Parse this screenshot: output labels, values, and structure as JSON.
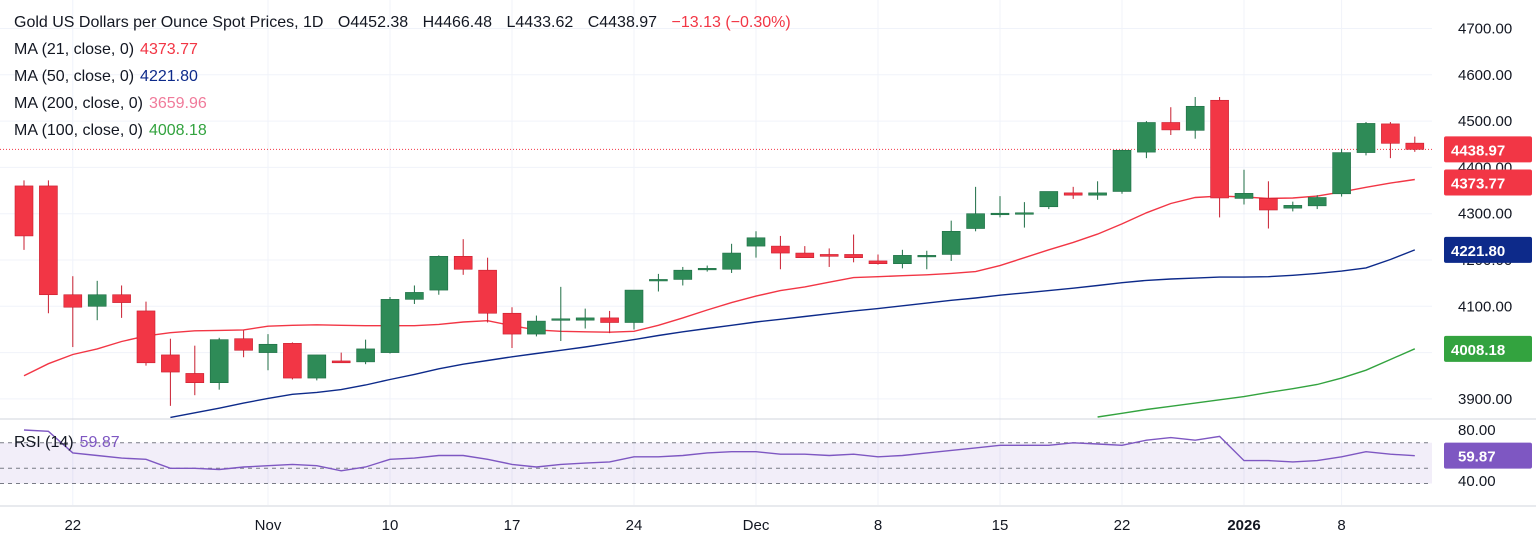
{
  "header": {
    "symbol": "Gold US Dollars per Ounce Spot Prices, 1D",
    "open": "O4452.38",
    "high": "H4466.48",
    "low": "L4433.62",
    "close": "C4438.97",
    "change": "−13.13 (−0.30%)"
  },
  "legend": [
    {
      "label": "MA (21, close, 0)",
      "value": "4373.77",
      "color": "#f23645"
    },
    {
      "label": "MA (50, close, 0)",
      "value": "4221.80",
      "color": "#0d2a8a"
    },
    {
      "label": "MA (200, close, 0)",
      "value": "3659.96",
      "color": "#f07a9a"
    },
    {
      "label": "MA (100, close, 0)",
      "value": "4008.18",
      "color": "#33a33f"
    }
  ],
  "rsi_legend": {
    "label": "RSI (14)",
    "value": "59.87",
    "color": "#7e57c2"
  },
  "price_tags": [
    {
      "value": "4438.97",
      "bg": "#f23645",
      "fg": "#ffffff",
      "y": 4438.97
    },
    {
      "value": "4373.77",
      "bg": "#f23645",
      "fg": "#ffffff",
      "y": 4373.77
    },
    {
      "value": "4221.80",
      "bg": "#0d2a8a",
      "fg": "#ffffff",
      "y": 4221.8
    },
    {
      "value": "4008.18",
      "bg": "#33a33f",
      "fg": "#ffffff",
      "y": 4008.18
    }
  ],
  "rsi_tag": {
    "value": "59.87",
    "bg": "#7e57c2",
    "fg": "#ffffff"
  },
  "chart_data": {
    "type": "candlestick",
    "title": "Gold US Dollars per Ounce Spot Prices, 1D",
    "y_ticks": [
      "3900.00",
      "4000.00",
      "4100.00",
      "4200.00",
      "4300.00",
      "4400.00",
      "4500.00",
      "4600.00",
      "4700.00"
    ],
    "x_ticks": [
      {
        "label": "22",
        "i": 2
      },
      {
        "label": "Nov",
        "i": 10
      },
      {
        "label": "10",
        "i": 15
      },
      {
        "label": "17",
        "i": 20
      },
      {
        "label": "24",
        "i": 25
      },
      {
        "label": "Dec",
        "i": 30
      },
      {
        "label": "8",
        "i": 35
      },
      {
        "label": "15",
        "i": 40
      },
      {
        "label": "22",
        "i": 45
      },
      {
        "label": "2026",
        "i": 50,
        "bold": true
      },
      {
        "label": "8",
        "i": 54
      }
    ],
    "ylim": [
      3830,
      4760
    ],
    "candles": [
      [
        4360,
        4372,
        4222,
        4252
      ],
      [
        4360,
        4372,
        4085,
        4125
      ],
      [
        4125,
        4165,
        4012,
        4098
      ],
      [
        4100,
        4155,
        4070,
        4125
      ],
      [
        4125,
        4145,
        4075,
        4108
      ],
      [
        4090,
        4110,
        3972,
        3978
      ],
      [
        3995,
        4030,
        3885,
        3958
      ],
      [
        3955,
        4015,
        3908,
        3935
      ],
      [
        3935,
        4032,
        3920,
        4028
      ],
      [
        4030,
        4048,
        3990,
        4005
      ],
      [
        4000,
        4040,
        3962,
        4018
      ],
      [
        4020,
        4022,
        3942,
        3945
      ],
      [
        3945,
        3995,
        3940,
        3995
      ],
      [
        3982,
        4000,
        3978,
        3978
      ],
      [
        3980,
        4028,
        3975,
        4008
      ],
      [
        4000,
        4120,
        3998,
        4115
      ],
      [
        4115,
        4145,
        4105,
        4130
      ],
      [
        4135,
        4210,
        4125,
        4208
      ],
      [
        4208,
        4245,
        4168,
        4180
      ],
      [
        4178,
        4205,
        4065,
        4085
      ],
      [
        4085,
        4098,
        4010,
        4040
      ],
      [
        4040,
        4080,
        4035,
        4068
      ],
      [
        4070,
        4142,
        4025,
        4073
      ],
      [
        4070,
        4095,
        4052,
        4075
      ],
      [
        4075,
        4090,
        4042,
        4065
      ],
      [
        4065,
        4130,
        4050,
        4135
      ],
      [
        4155,
        4170,
        4132,
        4158
      ],
      [
        4158,
        4185,
        4145,
        4178
      ],
      [
        4180,
        4188,
        4175,
        4182
      ],
      [
        4180,
        4235,
        4172,
        4215
      ],
      [
        4230,
        4262,
        4205,
        4248
      ],
      [
        4230,
        4252,
        4180,
        4215
      ],
      [
        4215,
        4230,
        4205,
        4205
      ],
      [
        4212,
        4225,
        4185,
        4208
      ],
      [
        4212,
        4255,
        4195,
        4205
      ],
      [
        4198,
        4212,
        4190,
        4192
      ],
      [
        4192,
        4222,
        4182,
        4210
      ],
      [
        4208,
        4220,
        4180,
        4210
      ],
      [
        4212,
        4285,
        4198,
        4262
      ],
      [
        4268,
        4358,
        4262,
        4300
      ],
      [
        4300,
        4338,
        4292,
        4301
      ],
      [
        4300,
        4325,
        4270,
        4302
      ],
      [
        4315,
        4345,
        4310,
        4348
      ],
      [
        4345,
        4358,
        4332,
        4340
      ],
      [
        4340,
        4370,
        4330,
        4345
      ],
      [
        4348,
        4438,
        4343,
        4437
      ],
      [
        4433,
        4500,
        4420,
        4497
      ],
      [
        4497,
        4530,
        4470,
        4481
      ],
      [
        4480,
        4552,
        4462,
        4532
      ],
      [
        4545,
        4552,
        4292,
        4334
      ],
      [
        4333,
        4395,
        4320,
        4344
      ],
      [
        4333,
        4370,
        4268,
        4308
      ],
      [
        4312,
        4326,
        4305,
        4318
      ],
      [
        4317,
        4340,
        4310,
        4335
      ],
      [
        4343,
        4440,
        4337,
        4432
      ],
      [
        4432,
        4498,
        4426,
        4495
      ],
      [
        4494,
        4498,
        4420,
        4452
      ],
      [
        4452.38,
        4466.48,
        4433.62,
        4438.97
      ]
    ],
    "ma21": [
      3950,
      3976,
      3996,
      4008,
      4024,
      4036,
      4043,
      4047,
      4048,
      4049,
      4057,
      4059,
      4060,
      4059,
      4058,
      4058,
      4058,
      4061,
      4066,
      4069,
      4058,
      4049,
      4046,
      4045,
      4044,
      4046,
      4059,
      4075,
      4092,
      4108,
      4122,
      4134,
      4142,
      4152,
      4162,
      4164,
      4166,
      4168,
      4171,
      4175,
      4188,
      4205,
      4222,
      4238,
      4256,
      4278,
      4302,
      4322,
      4335,
      4338,
      4336,
      4333,
      4334,
      4338,
      4347,
      4357,
      4366,
      4373.77
    ],
    "ma50": [
      3800,
      3810,
      3820,
      3830,
      3840,
      3850,
      3860,
      3870,
      3880,
      3891,
      3901,
      3910,
      3914,
      3920,
      3930,
      3942,
      3953,
      3965,
      3975,
      3983,
      3991,
      3998,
      4005,
      4012,
      4020,
      4028,
      4037,
      4045,
      4052,
      4059,
      4066,
      4072,
      4078,
      4084,
      4090,
      4095,
      4101,
      4107,
      4113,
      4118,
      4124,
      4129,
      4134,
      4139,
      4145,
      4151,
      4156,
      4159,
      4161,
      4163,
      4163,
      4164,
      4167,
      4171,
      4176,
      4183,
      4201,
      4221.8
    ],
    "ma100": [
      3800,
      3800,
      3800,
      3800,
      3800,
      3800,
      3800,
      3800,
      3800,
      3800,
      3800,
      3800,
      3800,
      3800,
      3800,
      3800,
      3800,
      3800,
      3800,
      3800,
      3800,
      3800,
      3800,
      3800,
      3800,
      3800,
      3800,
      3800,
      3800,
      3800,
      3800,
      3800,
      3800,
      3800,
      3800,
      3800,
      3800,
      3800,
      3800,
      3800,
      3800,
      3800,
      3800,
      3800,
      3861,
      3869,
      3877,
      3884,
      3891,
      3898,
      3905,
      3914,
      3922,
      3931,
      3945,
      3962,
      3985,
      4008.18
    ],
    "rsi": {
      "ylim": [
        34,
        86
      ],
      "ticks": [
        "80.00",
        "40.00"
      ],
      "levels": [
        70,
        50,
        38
      ],
      "values": [
        80,
        79,
        62,
        60,
        58,
        57,
        50,
        50,
        49,
        51,
        52,
        53,
        52,
        48,
        51,
        57,
        58,
        60,
        60,
        57,
        53,
        51,
        53,
        54,
        55,
        59,
        59,
        60,
        62,
        63,
        63,
        61,
        61,
        60,
        61,
        59,
        60,
        62,
        64,
        66,
        68,
        68,
        68,
        70,
        69,
        68,
        72,
        74,
        72,
        75,
        56,
        56,
        55,
        56,
        59,
        63,
        61,
        59.87
      ]
    }
  }
}
